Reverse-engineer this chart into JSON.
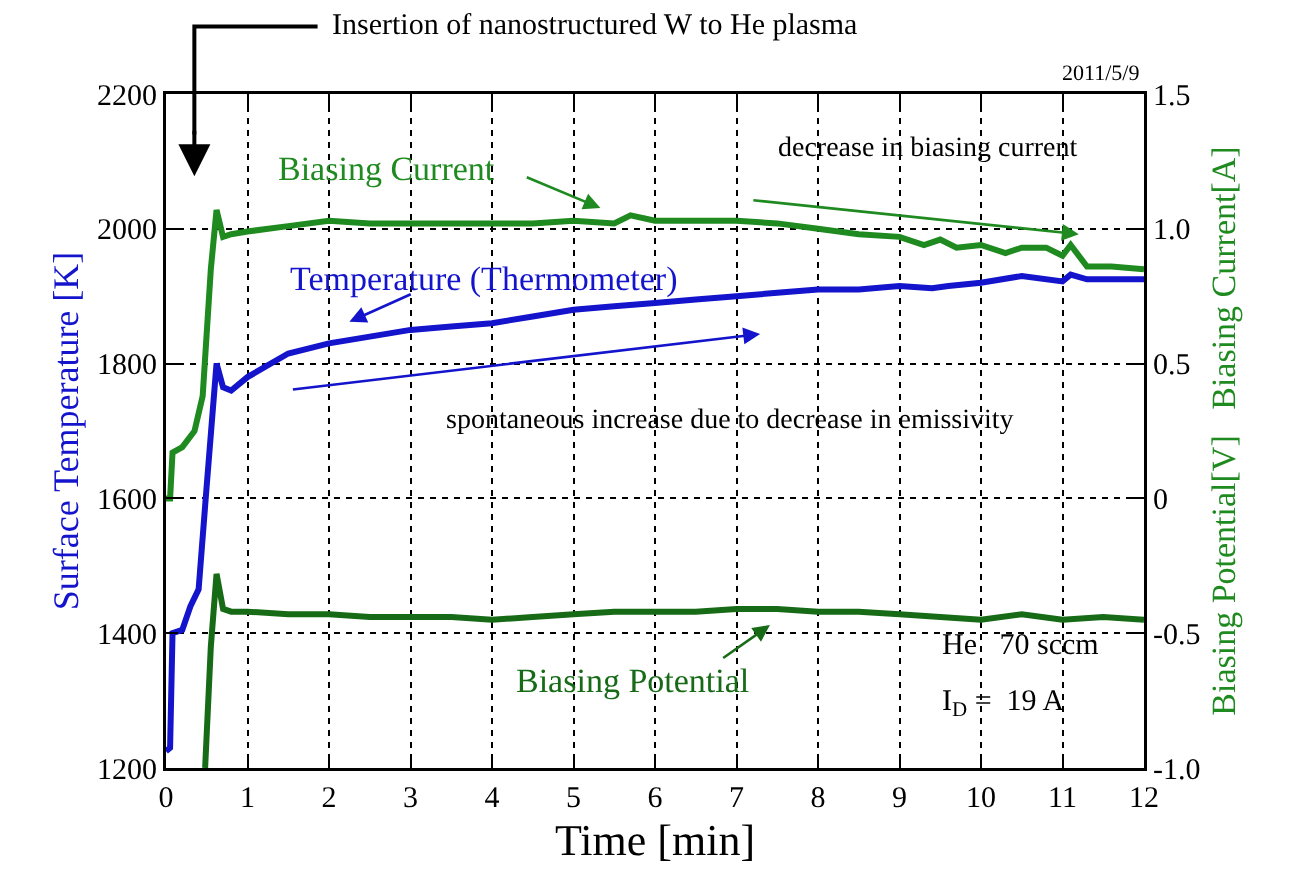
{
  "chart_data": {
    "type": "line",
    "xlabel": "Time [min]",
    "ylabel": "Surface Temperature [K]",
    "y2label": "Biasing Potential[V]   Biasing Current[A]",
    "xlim": [
      0,
      12
    ],
    "xticks": [
      0,
      1,
      2,
      3,
      4,
      5,
      6,
      7,
      8,
      9,
      10,
      11,
      12
    ],
    "ylim": [
      1200,
      2200
    ],
    "yticks": [
      1200,
      1400,
      1600,
      1800,
      2000,
      2200
    ],
    "y2lim": [
      -1.0,
      1.5
    ],
    "y2ticks": [
      {
        "value": -1,
        "label": "-1.0"
      },
      {
        "value": -0.5,
        "label": "-0.5"
      },
      0,
      {
        "value": 0.5,
        "label": "0.5"
      },
      {
        "value": 1,
        "label": "1.0"
      },
      {
        "value": 1.5,
        "label": "1.5"
      }
    ],
    "grid": true,
    "legend": false,
    "marker": "none",
    "line_style": "solid",
    "series": [
      {
        "name": "Temperature (Thermometer)",
        "color": "#1414cc",
        "x": [
          0,
          0.05,
          0.08,
          0.2,
          0.3,
          0.4,
          0.5,
          0.62,
          0.7,
          0.8,
          1,
          1.5,
          2,
          2.5,
          3,
          3.5,
          4,
          4.5,
          5,
          5.5,
          6,
          6.5,
          7,
          7.5,
          8,
          8.5,
          9,
          9.4,
          9.6,
          10,
          10.5,
          11,
          11.1,
          11.3,
          11.6,
          12
        ],
        "values": [
          1225,
          1230,
          1400,
          1405,
          1440,
          1465,
          1620,
          1800,
          1765,
          1760,
          1780,
          1815,
          1830,
          1840,
          1850,
          1855,
          1860,
          1870,
          1880,
          1885,
          1890,
          1895,
          1900,
          1905,
          1910,
          1910,
          1915,
          1912,
          1915,
          1920,
          1930,
          1922,
          1932,
          1925,
          1925,
          1925
        ]
      },
      {
        "name": "Biasing Current",
        "color": "#1f8a1f",
        "axis": "y2",
        "x": [
          0,
          0.05,
          0.08,
          0.2,
          0.35,
          0.45,
          0.55,
          0.62,
          0.7,
          0.8,
          1,
          1.5,
          2,
          2.5,
          3,
          3.5,
          4,
          4.5,
          5,
          5.5,
          5.7,
          6,
          6.5,
          7,
          7.5,
          8,
          8.5,
          9,
          9.3,
          9.5,
          9.7,
          10,
          10.3,
          10.5,
          10.8,
          11,
          11.1,
          11.3,
          11.6,
          12
        ],
        "values": [
          0.0,
          0.0,
          0.17,
          0.19,
          0.25,
          0.38,
          0.85,
          1.07,
          0.97,
          0.98,
          0.99,
          1.01,
          1.03,
          1.02,
          1.02,
          1.02,
          1.02,
          1.02,
          1.03,
          1.02,
          1.05,
          1.03,
          1.03,
          1.03,
          1.02,
          1.0,
          0.98,
          0.97,
          0.94,
          0.96,
          0.93,
          0.94,
          0.91,
          0.93,
          0.93,
          0.9,
          0.94,
          0.86,
          0.86,
          0.85
        ]
      },
      {
        "name": "Biasing Potential",
        "color": "#176b17",
        "axis": "y2",
        "x": [
          0.48,
          0.55,
          0.62,
          0.7,
          0.8,
          1,
          1.5,
          2,
          2.5,
          3,
          3.5,
          4,
          4.5,
          5,
          5.5,
          6,
          6.5,
          7,
          7.5,
          8,
          8.5,
          9,
          9.5,
          10,
          10.5,
          11,
          11.5,
          12
        ],
        "values": [
          -1.0,
          -0.55,
          -0.28,
          -0.41,
          -0.42,
          -0.42,
          -0.43,
          -0.43,
          -0.44,
          -0.44,
          -0.44,
          -0.45,
          -0.44,
          -0.43,
          -0.42,
          -0.42,
          -0.42,
          -0.41,
          -0.41,
          -0.42,
          -0.42,
          -0.43,
          -0.44,
          -0.45,
          -0.43,
          -0.45,
          -0.44,
          -0.45
        ]
      }
    ],
    "annotations": [
      "Insertion of nanostructured W to He plasma",
      "2011/5/9",
      "decrease in biasing current",
      "spontaneous increase due to decrease in emissivity",
      "He   70 sccm",
      "I$_{D}$ =  19 A"
    ]
  }
}
